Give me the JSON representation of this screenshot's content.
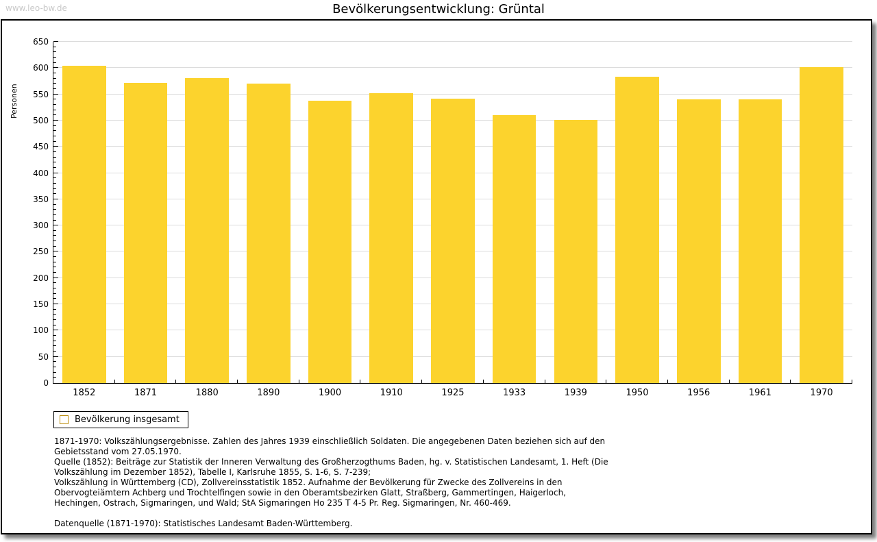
{
  "page": {
    "watermark": "www.leo-bw.de",
    "title": "Bevölkerungsentwicklung: Grüntal"
  },
  "chart_data": {
    "type": "bar",
    "title": "Bevölkerungsentwicklung: Grüntal",
    "xlabel": "",
    "ylabel": "Personen",
    "categories": [
      "1852",
      "1871",
      "1880",
      "1890",
      "1900",
      "1910",
      "1925",
      "1933",
      "1939",
      "1950",
      "1956",
      "1961",
      "1970"
    ],
    "values": [
      604,
      572,
      581,
      571,
      538,
      552,
      542,
      511,
      501,
      584,
      541,
      541,
      602
    ],
    "series_name": "Bevölkerung insgesamt",
    "ylim": [
      0,
      650
    ],
    "ytick_step": 50,
    "ytick_minor_step": 10,
    "grid": true,
    "legend_position": "bottom-left",
    "bar_color": "#fcd32d"
  },
  "legend": {
    "label": "Bevölkerung insgesamt"
  },
  "footnotes": {
    "paragraphs": [
      "1871-1970: Volkszählungsergebnisse. Zahlen des Jahres 1939 einschließlich Soldaten. Die angegebenen Daten beziehen sich auf den Gebietsstand vom 27.05.1970.",
      "Quelle (1852): Beiträge zur Statistik der Inneren Verwaltung des Großherzogthums Baden, hg. v. Statistischen Landesamt, 1. Heft (Die Volkszählung im Dezember 1852), Tabelle I, Karlsruhe 1855, S. 1-6, S. 7-239;",
      "Volkszählung in Württemberg (CD), Zollvereinsstatistik 1852. Aufnahme der Bevölkerung für Zwecke des Zollvereins in den Obervogteiämtern Achberg und Trochtelfingen sowie in den Oberamtsbezirken Glatt, Straßberg, Gammertingen, Haigerloch, Hechingen, Ostrach, Sigmaringen, und Wald; StA Sigmaringen Ho 235 T 4-5 Pr. Reg. Sigmaringen, Nr. 460-469."
    ],
    "datasource": "Datenquelle (1871-1970): Statistisches Landesamt Baden-Württemberg."
  },
  "colors": {
    "bar": "#fcd32d",
    "swatch_border": "#bd9013",
    "gridline": "#dcdcdc",
    "watermark": "#c9c9c9",
    "axis": "#000000"
  }
}
